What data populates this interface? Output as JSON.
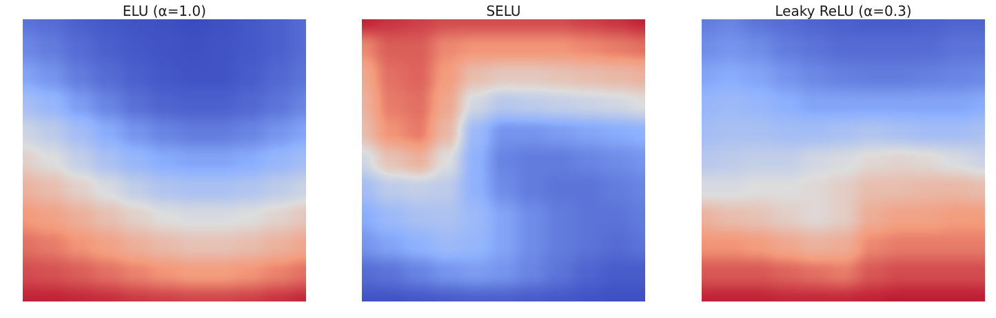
{
  "figure": {
    "colormap": "coolwarm",
    "axes_visible": false,
    "colormap_stops": [
      "#3b4cc0",
      "#8db0fe",
      "#dddddd",
      "#f49a7b",
      "#b40426"
    ]
  },
  "chart_data": [
    {
      "type": "heatmap",
      "title": "ELU (α=1.0)",
      "colormap": "coolwarm",
      "grid": [
        [
          0.1,
          0.08,
          0.05,
          0.03,
          0.02,
          0.01,
          0.0,
          0.01,
          0.03,
          0.05,
          0.08
        ],
        [
          0.15,
          0.12,
          0.08,
          0.05,
          0.03,
          0.02,
          0.01,
          0.02,
          0.03,
          0.05,
          0.08
        ],
        [
          0.22,
          0.18,
          0.12,
          0.08,
          0.05,
          0.03,
          0.02,
          0.02,
          0.04,
          0.07,
          0.1
        ],
        [
          0.33,
          0.28,
          0.2,
          0.14,
          0.09,
          0.06,
          0.05,
          0.05,
          0.07,
          0.1,
          0.14
        ],
        [
          0.45,
          0.4,
          0.32,
          0.24,
          0.18,
          0.14,
          0.12,
          0.12,
          0.14,
          0.18,
          0.22
        ],
        [
          0.55,
          0.5,
          0.42,
          0.34,
          0.28,
          0.24,
          0.22,
          0.22,
          0.24,
          0.28,
          0.32
        ],
        [
          0.66,
          0.62,
          0.55,
          0.48,
          0.41,
          0.36,
          0.34,
          0.34,
          0.36,
          0.4,
          0.44
        ],
        [
          0.75,
          0.72,
          0.67,
          0.61,
          0.55,
          0.5,
          0.48,
          0.48,
          0.5,
          0.54,
          0.58
        ],
        [
          0.82,
          0.8,
          0.76,
          0.72,
          0.67,
          0.63,
          0.6,
          0.6,
          0.62,
          0.66,
          0.7
        ],
        [
          0.88,
          0.87,
          0.85,
          0.82,
          0.79,
          0.76,
          0.74,
          0.74,
          0.76,
          0.79,
          0.82
        ],
        [
          0.95,
          0.95,
          0.94,
          0.93,
          0.91,
          0.9,
          0.89,
          0.89,
          0.9,
          0.92,
          0.94
        ]
      ]
    },
    {
      "type": "heatmap",
      "title": "SELU",
      "colormap": "coolwarm",
      "grid": [
        [
          0.95,
          0.92,
          0.9,
          0.88,
          0.88,
          0.88,
          0.88,
          0.88,
          0.9,
          0.92,
          0.95
        ],
        [
          0.78,
          0.85,
          0.85,
          0.78,
          0.76,
          0.76,
          0.76,
          0.76,
          0.78,
          0.8,
          0.82
        ],
        [
          0.7,
          0.82,
          0.84,
          0.74,
          0.62,
          0.58,
          0.58,
          0.6,
          0.62,
          0.64,
          0.66
        ],
        [
          0.66,
          0.8,
          0.82,
          0.7,
          0.46,
          0.38,
          0.4,
          0.42,
          0.44,
          0.46,
          0.5
        ],
        [
          0.62,
          0.76,
          0.8,
          0.64,
          0.3,
          0.18,
          0.18,
          0.2,
          0.22,
          0.24,
          0.26
        ],
        [
          0.46,
          0.6,
          0.66,
          0.5,
          0.26,
          0.14,
          0.12,
          0.12,
          0.14,
          0.16,
          0.18
        ],
        [
          0.32,
          0.4,
          0.42,
          0.4,
          0.26,
          0.16,
          0.12,
          0.1,
          0.1,
          0.12,
          0.14
        ],
        [
          0.24,
          0.3,
          0.34,
          0.35,
          0.3,
          0.22,
          0.16,
          0.12,
          0.1,
          0.1,
          0.12
        ],
        [
          0.18,
          0.22,
          0.26,
          0.3,
          0.28,
          0.22,
          0.16,
          0.12,
          0.1,
          0.08,
          0.1
        ],
        [
          0.08,
          0.1,
          0.14,
          0.18,
          0.2,
          0.18,
          0.14,
          0.1,
          0.06,
          0.04,
          0.04
        ],
        [
          0.02,
          0.02,
          0.03,
          0.04,
          0.05,
          0.05,
          0.04,
          0.03,
          0.02,
          0.01,
          0.01
        ]
      ]
    },
    {
      "type": "heatmap",
      "title": "Leaky ReLU (α=0.3)",
      "colormap": "coolwarm",
      "grid": [
        [
          0.12,
          0.14,
          0.1,
          0.08,
          0.06,
          0.05,
          0.04,
          0.04,
          0.05,
          0.06,
          0.06
        ],
        [
          0.16,
          0.18,
          0.16,
          0.12,
          0.1,
          0.08,
          0.08,
          0.08,
          0.08,
          0.1,
          0.1
        ],
        [
          0.22,
          0.24,
          0.22,
          0.18,
          0.15,
          0.13,
          0.12,
          0.12,
          0.13,
          0.14,
          0.15
        ],
        [
          0.28,
          0.3,
          0.28,
          0.25,
          0.22,
          0.22,
          0.22,
          0.22,
          0.22,
          0.22,
          0.24
        ],
        [
          0.32,
          0.34,
          0.34,
          0.32,
          0.32,
          0.34,
          0.36,
          0.34,
          0.32,
          0.32,
          0.34
        ],
        [
          0.38,
          0.4,
          0.42,
          0.42,
          0.46,
          0.48,
          0.52,
          0.54,
          0.52,
          0.48,
          0.44
        ],
        [
          0.48,
          0.48,
          0.5,
          0.5,
          0.52,
          0.56,
          0.62,
          0.62,
          0.64,
          0.64,
          0.62
        ],
        [
          0.66,
          0.62,
          0.6,
          0.56,
          0.52,
          0.56,
          0.68,
          0.72,
          0.72,
          0.74,
          0.74
        ],
        [
          0.76,
          0.76,
          0.74,
          0.7,
          0.66,
          0.68,
          0.78,
          0.8,
          0.8,
          0.8,
          0.8
        ],
        [
          0.86,
          0.86,
          0.86,
          0.84,
          0.82,
          0.8,
          0.86,
          0.88,
          0.88,
          0.88,
          0.88
        ],
        [
          0.95,
          0.95,
          0.95,
          0.94,
          0.94,
          0.94,
          0.95,
          0.96,
          0.96,
          0.96,
          0.96
        ]
      ]
    }
  ]
}
